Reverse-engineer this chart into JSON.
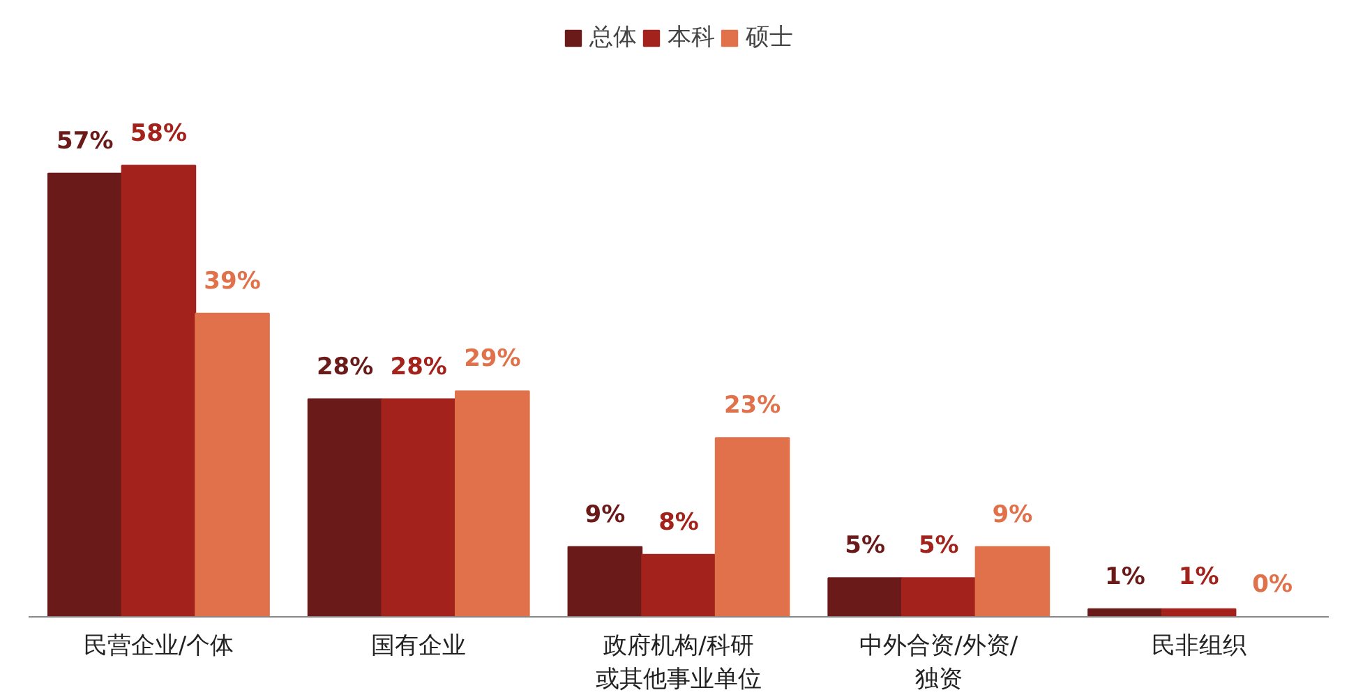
{
  "chart_data": {
    "type": "bar",
    "categories": [
      "民营企业/个体",
      "国有企业",
      "政府机构/科研或其他事业单位",
      "中外合资/外资/独资",
      "民非组织"
    ],
    "series": [
      {
        "name": "总体",
        "color": "#6b1a1a",
        "values": [
          57,
          28,
          9,
          5,
          1
        ],
        "value_labels": [
          "57%",
          "28%",
          "9%",
          "5%",
          "1%"
        ]
      },
      {
        "name": "本科",
        "color": "#a3231c",
        "values": [
          58,
          28,
          8,
          5,
          1
        ],
        "value_labels": [
          "58%",
          "28%",
          "8%",
          "5%",
          "1%"
        ]
      },
      {
        "name": "硕士",
        "color": "#e0714a",
        "values": [
          39,
          29,
          23,
          9,
          0
        ],
        "value_labels": [
          "39%",
          "29%",
          "23%",
          "9%",
          "0%"
        ]
      }
    ],
    "legend": "top",
    "grid": false,
    "tick_labels": "x"
  }
}
